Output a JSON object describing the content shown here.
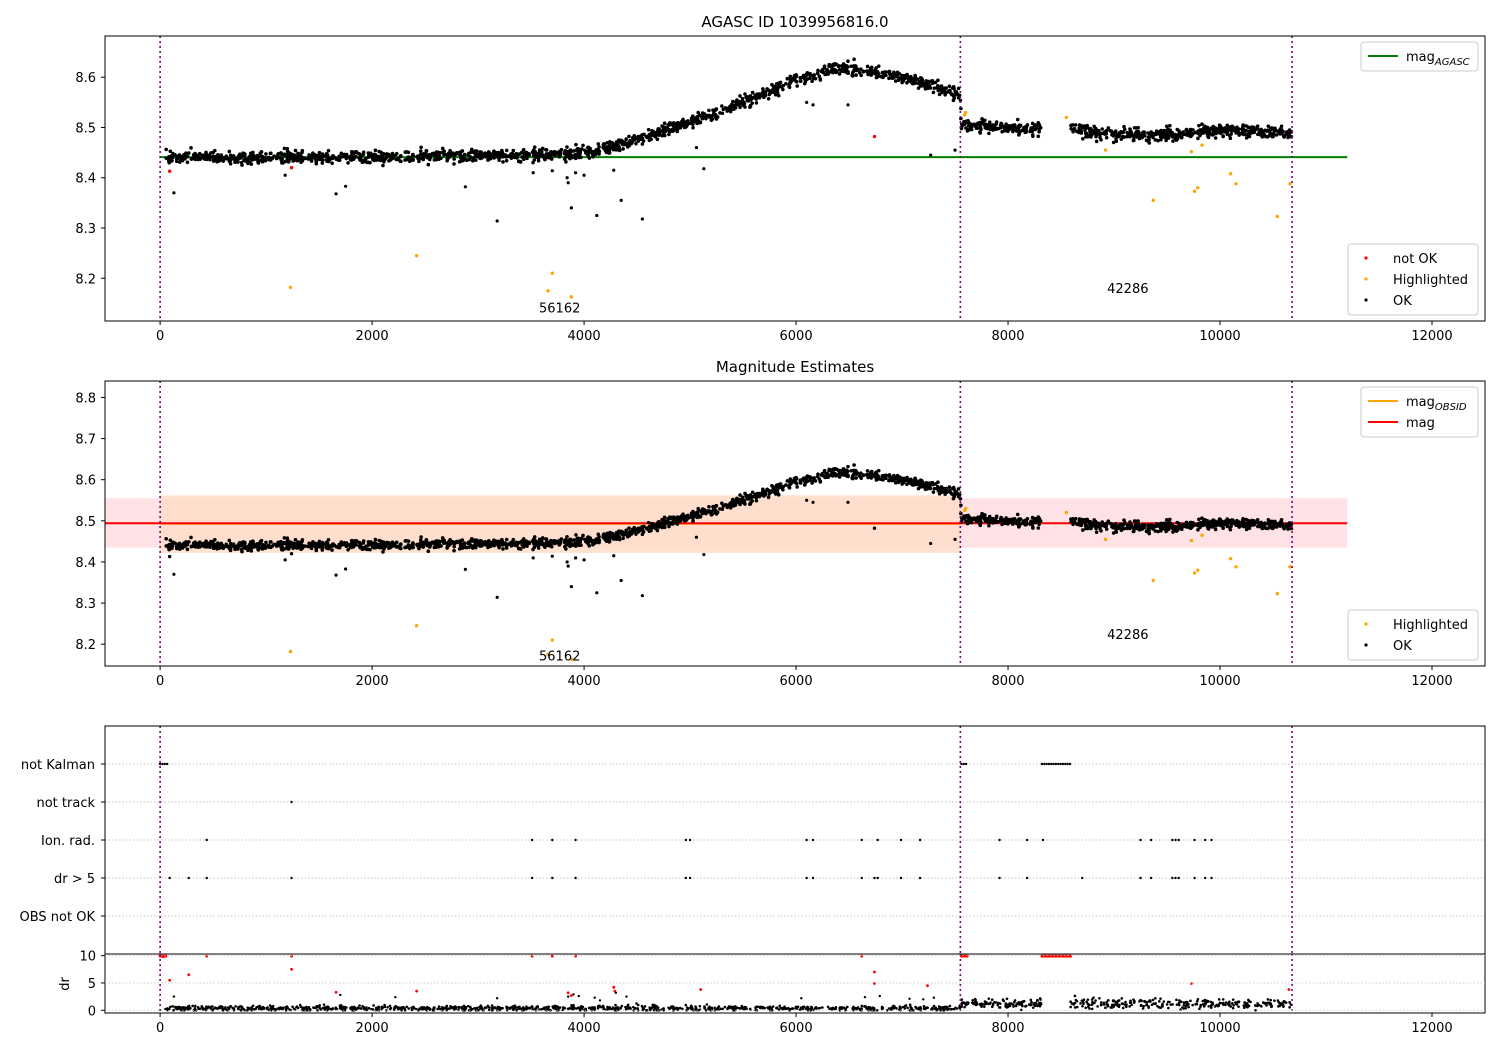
{
  "colors": {
    "ok": "#000000",
    "not_ok": "#ff0000",
    "highlighted": "#ffa500",
    "mag_agasc": "#008000",
    "mag_obsid": "#ffa500",
    "mag": "#ff0000",
    "obs_boundary": "#800080",
    "band_obsid": "#ffddc8",
    "band_mag": "#ffdde2"
  },
  "chart_data": [
    {
      "type": "scatter",
      "title": "AGASC ID 1039956816.0",
      "xlabel": "",
      "ylabel": "",
      "xlim": [
        -520,
        12500
      ],
      "ylim": [
        8.115,
        8.682
      ],
      "xticks": [
        0,
        2000,
        4000,
        6000,
        8000,
        10000,
        12000
      ],
      "xtick_labels": [
        "0",
        "2000",
        "4000",
        "6000",
        "8000",
        "10000",
        "12000"
      ],
      "yticks": [
        8.2,
        8.3,
        8.4,
        8.5,
        8.6
      ],
      "ytick_labels": [
        "8.2",
        "8.3",
        "8.4",
        "8.5",
        "8.6"
      ],
      "grid": false,
      "obs_boundaries": [
        0,
        7550,
        10680
      ],
      "obs_labels": [
        {
          "text": "56162",
          "x": 3770,
          "y": 8.14
        },
        {
          "text": "42286",
          "x": 9130,
          "y": 8.179
        }
      ],
      "lines": [
        {
          "name": "mag_AGASC",
          "x": [
            0,
            11200
          ],
          "y": [
            8.441,
            8.441
          ],
          "color": "#008000"
        }
      ],
      "trend": {
        "x": [
          50,
          1000,
          2000,
          3000,
          3800,
          4100,
          4500,
          5000,
          5500,
          6000,
          6400,
          6700,
          7000,
          7300,
          7550,
          7560,
          8300,
          8600,
          9000,
          9500,
          10000,
          10680
        ],
        "y": [
          8.44,
          8.44,
          8.44,
          8.443,
          8.447,
          8.452,
          8.475,
          8.51,
          8.55,
          8.595,
          8.617,
          8.612,
          8.6,
          8.583,
          8.565,
          8.505,
          8.498,
          8.498,
          8.485,
          8.485,
          8.495,
          8.488
        ],
        "gaps": [
          [
            8320,
            8590
          ]
        ],
        "scatter": 0.012,
        "count": 2200
      },
      "outliers": {
        "ok": {
          "x": [
            130,
            1180,
            1660,
            1750,
            2880,
            3180,
            3520,
            3700,
            3840,
            3850,
            3880,
            3920,
            4000,
            4120,
            4280,
            4350,
            4550,
            5060,
            5130,
            6100,
            6160,
            6490,
            7270,
            7500
          ],
          "y": [
            8.37,
            8.405,
            8.368,
            8.383,
            8.382,
            8.314,
            8.41,
            8.414,
            8.4,
            8.39,
            8.34,
            8.41,
            8.405,
            8.325,
            8.415,
            8.355,
            8.318,
            8.46,
            8.418,
            8.55,
            8.545,
            8.545,
            8.445,
            8.455
          ]
        },
        "not_ok": {
          "x": [
            90,
            1240,
            6740
          ],
          "y": [
            8.413,
            8.42,
            8.482
          ]
        },
        "highlighted": {
          "x": [
            1230,
            2420,
            3660,
            3700,
            3880,
            7590,
            7600,
            8550,
            8920,
            9370,
            9730,
            9760,
            9790,
            9830,
            10100,
            10150,
            10540,
            10660
          ],
          "y": [
            8.182,
            8.245,
            8.175,
            8.21,
            8.163,
            8.525,
            8.53,
            8.52,
            8.455,
            8.355,
            8.452,
            8.373,
            8.38,
            8.465,
            8.408,
            8.388,
            8.323,
            8.388
          ]
        }
      },
      "legends": [
        {
          "position": "top-right",
          "entries": [
            {
              "label": "mag",
              "sub": "AGASC",
              "marker": "line",
              "color": "#008000"
            }
          ]
        },
        {
          "position": "lower-right",
          "entries": [
            {
              "label": "not OK",
              "marker": "dot",
              "color": "#ff0000"
            },
            {
              "label": "Highlighted",
              "marker": "dot",
              "color": "#ffa500"
            },
            {
              "label": "OK",
              "marker": "dot",
              "color": "#000000"
            }
          ]
        }
      ]
    },
    {
      "type": "scatter",
      "title": "Magnitude Estimates",
      "xlabel": "",
      "ylabel": "",
      "xlim": [
        -520,
        12500
      ],
      "ylim": [
        8.147,
        8.84
      ],
      "xticks": [
        0,
        2000,
        4000,
        6000,
        8000,
        10000,
        12000
      ],
      "xtick_labels": [
        "0",
        "2000",
        "4000",
        "6000",
        "8000",
        "10000",
        "12000"
      ],
      "yticks": [
        8.2,
        8.3,
        8.4,
        8.5,
        8.6,
        8.7,
        8.8
      ],
      "ytick_labels": [
        "8.2",
        "8.3",
        "8.4",
        "8.5",
        "8.6",
        "8.7",
        "8.8"
      ],
      "grid": false,
      "obs_boundaries": [
        0,
        7550,
        10680
      ],
      "obs_labels": [
        {
          "text": "56162",
          "x": 3770,
          "y": 8.17
        },
        {
          "text": "42286",
          "x": 9130,
          "y": 8.222
        }
      ],
      "bands": [
        {
          "x": [
            -520,
            11200
          ],
          "y": [
            8.435,
            8.555
          ],
          "color": "#ffdde2"
        },
        {
          "x": [
            0,
            7550
          ],
          "y": [
            8.422,
            8.562
          ],
          "color": "#ffddc8"
        }
      ],
      "lines": [
        {
          "name": "mag_OBSID",
          "x": [
            0,
            7550
          ],
          "y": [
            8.493,
            8.493
          ],
          "color": "#ffa500"
        },
        {
          "name": "mag",
          "x": [
            -520,
            11200
          ],
          "y": [
            8.494,
            8.494
          ],
          "color": "#ff0000"
        }
      ],
      "legends": [
        {
          "position": "top-right",
          "entries": [
            {
              "label": "mag",
              "sub": "OBSID",
              "marker": "line",
              "color": "#ffa500"
            },
            {
              "label": "mag",
              "marker": "line",
              "color": "#ff0000"
            }
          ]
        },
        {
          "position": "lower-right",
          "entries": [
            {
              "label": "Highlighted",
              "marker": "dot",
              "color": "#ffa500"
            },
            {
              "label": "OK",
              "marker": "dot",
              "color": "#000000"
            }
          ]
        }
      ]
    },
    {
      "type": "scatter",
      "title": "",
      "xlabel": "",
      "ylabel": "",
      "xlim": [
        -520,
        12500
      ],
      "categories": [
        "not Kalman",
        "not track",
        "Ion. rad.",
        "dr > 5",
        "OBS not OK"
      ],
      "obs_boundaries": [
        0,
        7550,
        10680
      ],
      "flags": {
        "not Kalman": {
          "ranges": [
            [
              0,
              70
            ],
            [
              7560,
              7620
            ],
            [
              8320,
              8590
            ]
          ],
          "points": []
        },
        "not track": {
          "ranges": [],
          "points": [
            1240
          ]
        },
        "Ion. rad.": {
          "ranges": [],
          "points": [
            440,
            3510,
            3700,
            3920,
            4960,
            5000,
            6100,
            6160,
            6620,
            6770,
            6990,
            7170,
            7920,
            8180,
            8330,
            9250,
            9350,
            9550,
            9580,
            9610,
            9760,
            9860,
            9920
          ]
        },
        "dr > 5": {
          "ranges": [],
          "points": [
            90,
            270,
            440,
            1240,
            3510,
            3700,
            3920,
            4960,
            5000,
            6100,
            6160,
            6620,
            6740,
            6770,
            6990,
            7170,
            7920,
            8180,
            8700,
            9250,
            9350,
            9550,
            9580,
            9610,
            9760,
            9860,
            9920
          ]
        },
        "OBS not OK": {
          "ranges": [],
          "points": []
        }
      }
    },
    {
      "type": "scatter",
      "title": "",
      "xlabel": "",
      "ylabel": "dr",
      "xlim": [
        -520,
        12500
      ],
      "ylim": [
        -0.5,
        10.3
      ],
      "xticks": [
        0,
        2000,
        4000,
        6000,
        8000,
        10000,
        12000
      ],
      "xtick_labels": [
        "0",
        "2000",
        "4000",
        "6000",
        "8000",
        "10000",
        "12000"
      ],
      "yticks": [
        0,
        5,
        10
      ],
      "ytick_labels": [
        "0",
        "5",
        "10"
      ],
      "grid": true,
      "obs_boundaries": [
        0,
        7550,
        10680
      ],
      "baseline": {
        "gaps": [
          [
            8320,
            8590
          ]
        ],
        "segments": [
          {
            "x": [
              50,
              7550
            ],
            "level": 0.35,
            "scatter": 0.25
          },
          {
            "x": [
              7560,
              10680
            ],
            "level": 1.2,
            "scatter": 0.45
          }
        ],
        "count": 1400
      },
      "points_ok": {
        "x": [
          130,
          1700,
          2220,
          3180,
          3850,
          3900,
          3950,
          4100,
          4150,
          4300,
          4400,
          6050,
          6650,
          6790,
          7070,
          7200,
          7300
        ],
        "y": [
          2.5,
          2.8,
          2.4,
          2.2,
          2.5,
          2.9,
          2.6,
          2.3,
          1.8,
          3.2,
          2.5,
          2.2,
          2.4,
          2.6,
          2.1,
          2.0,
          2.3
        ]
      },
      "points_not_ok": {
        "x": [
          30,
          90,
          270,
          440,
          1240,
          1240,
          1660,
          2420,
          3510,
          3700,
          3850,
          3880,
          3920,
          4280,
          4290,
          5100,
          6620,
          6740,
          6740,
          7240,
          9730,
          10650
        ],
        "y": [
          9.8,
          5.5,
          6.5,
          9.9,
          9.9,
          7.5,
          3.3,
          3.5,
          9.9,
          9.9,
          3.2,
          2.7,
          9.9,
          4.2,
          3.5,
          3.8,
          9.9,
          7.0,
          4.9,
          4.5,
          4.9,
          3.8
        ]
      }
    }
  ]
}
